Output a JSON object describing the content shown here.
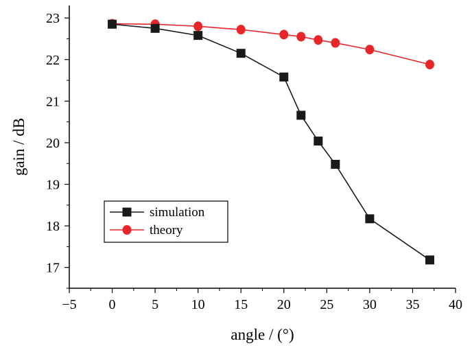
{
  "chart_data": {
    "type": "line",
    "title": "",
    "xlabel": "angle / (°)",
    "ylabel": "gain / dB",
    "xlim": [
      -5,
      40
    ],
    "ylim": [
      16.5,
      23.3
    ],
    "xticks": [
      -5,
      0,
      5,
      10,
      15,
      20,
      25,
      30,
      35,
      40
    ],
    "yticks": [
      17,
      18,
      19,
      20,
      21,
      22,
      23
    ],
    "grid": false,
    "legend_position": "bottom-left",
    "series": [
      {
        "name": "simulation",
        "color": "#1a1a1a",
        "marker": "square",
        "x": [
          0,
          5,
          10,
          15,
          20,
          22,
          24,
          26,
          30,
          37
        ],
        "y": [
          22.85,
          22.75,
          22.58,
          22.15,
          21.58,
          20.66,
          20.04,
          19.48,
          18.17,
          17.18
        ]
      },
      {
        "name": "theory",
        "color": "#e8262a",
        "marker": "circle",
        "x": [
          0,
          5,
          10,
          15,
          20,
          22,
          24,
          26,
          30,
          37
        ],
        "y": [
          22.86,
          22.85,
          22.8,
          22.72,
          22.6,
          22.55,
          22.47,
          22.4,
          22.24,
          21.88
        ]
      }
    ]
  }
}
